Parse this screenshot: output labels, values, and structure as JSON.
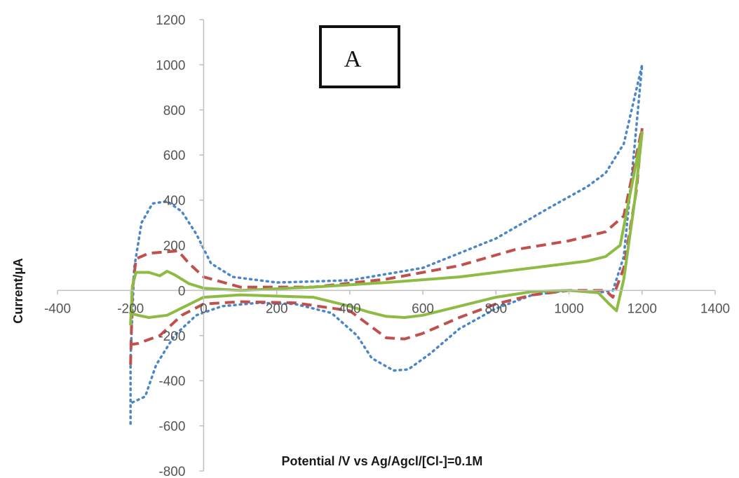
{
  "chart_data": {
    "type": "line",
    "panel_label": "A",
    "xlabel": "Potential  /V vs Ag/Agcl/[Cl-]=0.1M",
    "ylabel": "Current/µA",
    "xlim": [
      -400,
      1400
    ],
    "ylim": [
      -800,
      1200
    ],
    "x_ticks": [
      "-400",
      "-200",
      "0",
      "200",
      "400",
      "600",
      "800",
      "1000",
      "1200",
      "1400"
    ],
    "y_ticks": [
      "1200",
      "1000",
      "800",
      "600",
      "400",
      "200",
      "0",
      "-200",
      "-400",
      "-600",
      "-800"
    ],
    "grid": false,
    "legend": "none",
    "colors": {
      "blue": "#4a86c8",
      "red": "#c0504d",
      "green": "#8dbb44",
      "axis": "#bfbfbf"
    },
    "series": [
      {
        "style": "dotted",
        "color": "#4a86c8",
        "points": [
          [
            -200,
            -590
          ],
          [
            -200,
            -300
          ],
          [
            -190,
            100
          ],
          [
            -170,
            300
          ],
          [
            -140,
            385
          ],
          [
            -100,
            395
          ],
          [
            -60,
            350
          ],
          [
            -20,
            250
          ],
          [
            20,
            120
          ],
          [
            80,
            60
          ],
          [
            200,
            35
          ],
          [
            400,
            45
          ],
          [
            600,
            100
          ],
          [
            800,
            230
          ],
          [
            950,
            370
          ],
          [
            1050,
            460
          ],
          [
            1100,
            520
          ],
          [
            1150,
            650
          ],
          [
            1200,
            1000
          ],
          [
            1180,
            650
          ],
          [
            1150,
            150
          ],
          [
            1120,
            0
          ],
          [
            1080,
            -10
          ],
          [
            1000,
            0
          ],
          [
            900,
            -20
          ],
          [
            800,
            -80
          ],
          [
            700,
            -170
          ],
          [
            620,
            -280
          ],
          [
            560,
            -350
          ],
          [
            520,
            -355
          ],
          [
            460,
            -300
          ],
          [
            420,
            -200
          ],
          [
            350,
            -100
          ],
          [
            250,
            -60
          ],
          [
            150,
            -55
          ],
          [
            50,
            -70
          ],
          [
            -20,
            -110
          ],
          [
            -80,
            -200
          ],
          [
            -130,
            -330
          ],
          [
            -160,
            -470
          ],
          [
            -200,
            -500
          ]
        ]
      },
      {
        "style": "dashed",
        "color": "#c0504d",
        "points": [
          [
            -200,
            -330
          ],
          [
            -195,
            0
          ],
          [
            -185,
            140
          ],
          [
            -150,
            165
          ],
          [
            -110,
            170
          ],
          [
            -70,
            175
          ],
          [
            -40,
            120
          ],
          [
            0,
            60
          ],
          [
            100,
            15
          ],
          [
            300,
            15
          ],
          [
            500,
            50
          ],
          [
            700,
            110
          ],
          [
            850,
            180
          ],
          [
            1000,
            220
          ],
          [
            1100,
            260
          ],
          [
            1150,
            330
          ],
          [
            1200,
            720
          ],
          [
            1185,
            450
          ],
          [
            1150,
            100
          ],
          [
            1120,
            -30
          ],
          [
            1100,
            0
          ],
          [
            1000,
            0
          ],
          [
            900,
            -20
          ],
          [
            800,
            -60
          ],
          [
            700,
            -120
          ],
          [
            600,
            -190
          ],
          [
            550,
            -215
          ],
          [
            500,
            -210
          ],
          [
            450,
            -150
          ],
          [
            400,
            -90
          ],
          [
            250,
            -55
          ],
          [
            100,
            -50
          ],
          [
            0,
            -60
          ],
          [
            -60,
            -110
          ],
          [
            -120,
            -200
          ],
          [
            -180,
            -235
          ],
          [
            -200,
            -240
          ]
        ]
      },
      {
        "style": "solid",
        "color": "#8dbb44",
        "points": [
          [
            -200,
            -150
          ],
          [
            -195,
            20
          ],
          [
            -185,
            80
          ],
          [
            -150,
            80
          ],
          [
            -120,
            65
          ],
          [
            -100,
            85
          ],
          [
            -80,
            70
          ],
          [
            -40,
            30
          ],
          [
            0,
            10
          ],
          [
            100,
            0
          ],
          [
            300,
            15
          ],
          [
            500,
            35
          ],
          [
            700,
            60
          ],
          [
            900,
            100
          ],
          [
            1050,
            130
          ],
          [
            1100,
            150
          ],
          [
            1140,
            200
          ],
          [
            1200,
            700
          ],
          [
            1180,
            400
          ],
          [
            1150,
            50
          ],
          [
            1130,
            -90
          ],
          [
            1110,
            -60
          ],
          [
            1080,
            -10
          ],
          [
            1000,
            0
          ],
          [
            900,
            -5
          ],
          [
            800,
            -30
          ],
          [
            700,
            -70
          ],
          [
            600,
            -110
          ],
          [
            550,
            -120
          ],
          [
            500,
            -115
          ],
          [
            450,
            -95
          ],
          [
            400,
            -70
          ],
          [
            300,
            -30
          ],
          [
            100,
            -20
          ],
          [
            0,
            -30
          ],
          [
            -50,
            -70
          ],
          [
            -100,
            -110
          ],
          [
            -150,
            -120
          ],
          [
            -180,
            -110
          ],
          [
            -200,
            -100
          ]
        ]
      }
    ]
  }
}
